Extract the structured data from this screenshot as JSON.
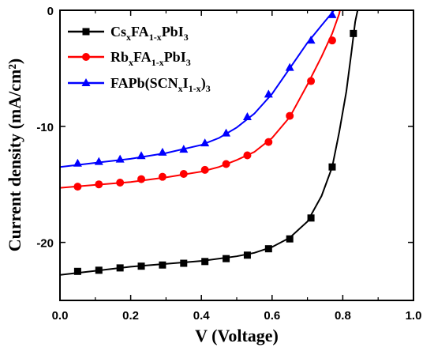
{
  "chart_data": {
    "type": "line",
    "xlabel": "V (Voltage)",
    "ylabel": "Current density (mA/cm²)",
    "xlim": [
      0.0,
      1.0
    ],
    "ylim": [
      -25,
      0
    ],
    "x_ticks": [
      "0.0",
      "0.2",
      "0.4",
      "0.6",
      "0.8",
      "1.0"
    ],
    "y_ticks": [
      "0",
      "-10",
      "-20"
    ],
    "legend_placement": "top-left",
    "series": [
      {
        "name": "CsxFA1-xPbI3",
        "legend": {
          "base": "Cs",
          "s1": "x",
          "mid": "FA",
          "s2": "1-x",
          "tail": "PbI",
          "s3": "3"
        },
        "color": "#000000",
        "marker": "square",
        "curve": [
          [
            0.0,
            -22.8
          ],
          [
            0.1,
            -22.45
          ],
          [
            0.2,
            -22.1
          ],
          [
            0.3,
            -21.85
          ],
          [
            0.4,
            -21.6
          ],
          [
            0.5,
            -21.2
          ],
          [
            0.55,
            -20.9
          ],
          [
            0.6,
            -20.4
          ],
          [
            0.65,
            -19.6
          ],
          [
            0.7,
            -18.2
          ],
          [
            0.74,
            -16.0
          ],
          [
            0.77,
            -13.5
          ],
          [
            0.79,
            -10.5
          ],
          [
            0.81,
            -7.0
          ],
          [
            0.825,
            -3.5
          ],
          [
            0.835,
            -1.0
          ],
          [
            0.842,
            0.0
          ]
        ],
        "markers": [
          [
            0.05,
            -22.5
          ],
          [
            0.11,
            -22.4
          ],
          [
            0.17,
            -22.2
          ],
          [
            0.23,
            -22.05
          ],
          [
            0.29,
            -21.95
          ],
          [
            0.35,
            -21.8
          ],
          [
            0.41,
            -21.65
          ],
          [
            0.47,
            -21.4
          ],
          [
            0.53,
            -21.1
          ],
          [
            0.59,
            -20.55
          ],
          [
            0.65,
            -19.7
          ],
          [
            0.71,
            -17.9
          ],
          [
            0.77,
            -13.5
          ],
          [
            0.83,
            -2.0
          ]
        ]
      },
      {
        "name": "RbxFA1-xPbI3",
        "legend": {
          "base": "Rb",
          "s1": "x",
          "mid": "FA",
          "s2": "1-x",
          "tail": "PbI",
          "s3": "3"
        },
        "color": "#ff0000",
        "marker": "circle",
        "curve": [
          [
            0.0,
            -15.3
          ],
          [
            0.1,
            -15.05
          ],
          [
            0.2,
            -14.8
          ],
          [
            0.3,
            -14.4
          ],
          [
            0.4,
            -13.9
          ],
          [
            0.45,
            -13.5
          ],
          [
            0.5,
            -12.9
          ],
          [
            0.55,
            -12.2
          ],
          [
            0.6,
            -11.0
          ],
          [
            0.65,
            -9.2
          ],
          [
            0.7,
            -6.4
          ],
          [
            0.74,
            -4.0
          ],
          [
            0.77,
            -2.0
          ],
          [
            0.79,
            -0.3
          ],
          [
            0.792,
            0.0
          ]
        ],
        "markers": [
          [
            0.05,
            -15.2
          ],
          [
            0.11,
            -15.0
          ],
          [
            0.17,
            -14.85
          ],
          [
            0.23,
            -14.55
          ],
          [
            0.29,
            -14.35
          ],
          [
            0.35,
            -14.1
          ],
          [
            0.41,
            -13.75
          ],
          [
            0.47,
            -13.25
          ],
          [
            0.53,
            -12.5
          ],
          [
            0.59,
            -11.35
          ],
          [
            0.65,
            -9.1
          ],
          [
            0.71,
            -6.1
          ],
          [
            0.77,
            -2.6
          ]
        ]
      },
      {
        "name": "FAPb(SCNxI1-x)3",
        "legend": {
          "base": "FAPb(SCN",
          "s1": "x",
          "mid": "I",
          "s2": "1-x",
          "tail": ")",
          "s3": "3"
        },
        "color": "#0000ff",
        "marker": "triangle",
        "curve": [
          [
            0.0,
            -13.5
          ],
          [
            0.1,
            -13.15
          ],
          [
            0.2,
            -12.8
          ],
          [
            0.3,
            -12.3
          ],
          [
            0.4,
            -11.6
          ],
          [
            0.45,
            -11.0
          ],
          [
            0.5,
            -10.1
          ],
          [
            0.55,
            -8.9
          ],
          [
            0.6,
            -7.2
          ],
          [
            0.65,
            -5.0
          ],
          [
            0.7,
            -2.8
          ],
          [
            0.74,
            -1.3
          ],
          [
            0.77,
            -0.2
          ],
          [
            0.775,
            0.0
          ]
        ],
        "markers": [
          [
            0.05,
            -13.2
          ],
          [
            0.11,
            -13.05
          ],
          [
            0.17,
            -12.85
          ],
          [
            0.23,
            -12.55
          ],
          [
            0.29,
            -12.25
          ],
          [
            0.35,
            -12.0
          ],
          [
            0.41,
            -11.45
          ],
          [
            0.47,
            -10.6
          ],
          [
            0.53,
            -9.2
          ],
          [
            0.59,
            -7.25
          ],
          [
            0.65,
            -4.95
          ],
          [
            0.71,
            -2.6
          ],
          [
            0.77,
            -0.4
          ]
        ]
      }
    ]
  }
}
